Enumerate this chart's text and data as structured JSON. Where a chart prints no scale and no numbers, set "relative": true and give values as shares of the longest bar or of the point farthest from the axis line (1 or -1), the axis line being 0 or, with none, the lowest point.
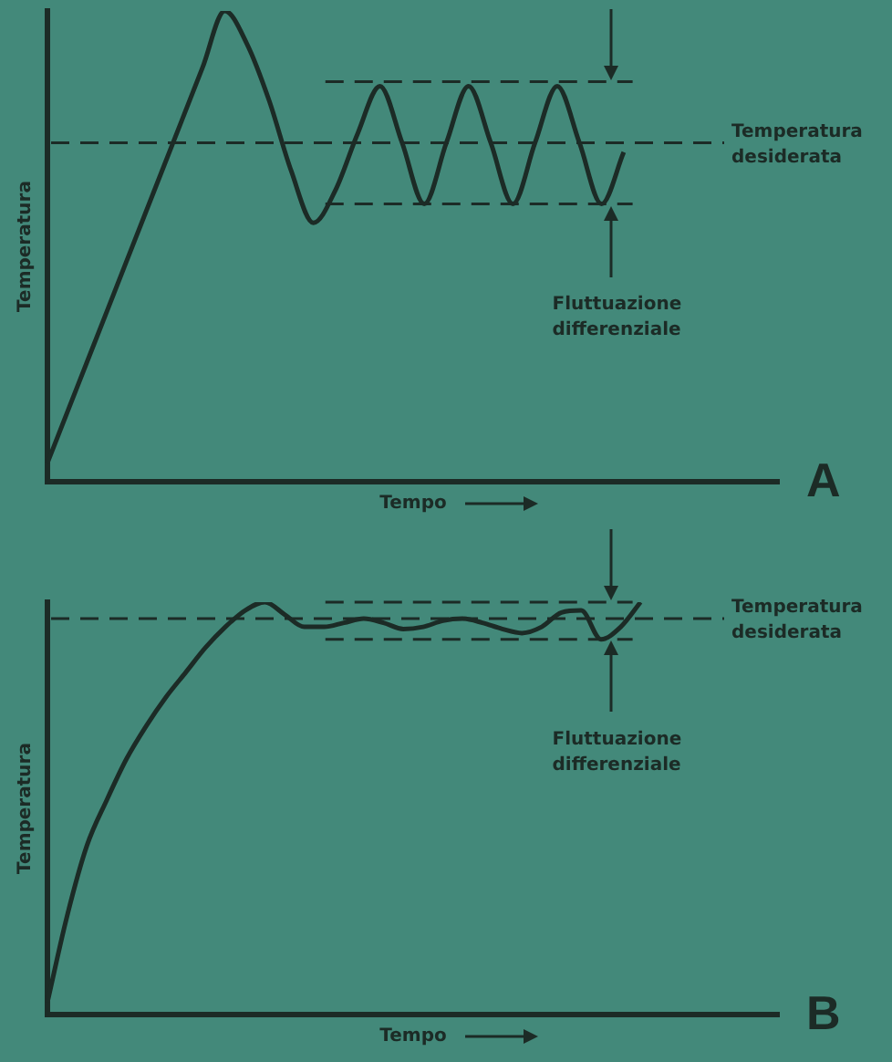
{
  "chart_data": [
    {
      "type": "line",
      "ylabel": "Temperatura",
      "xlabel": "Tempo",
      "relative": true,
      "marker": "none",
      "grid": false,
      "legend": false,
      "categories": [
        null,
        null,
        null,
        null,
        null,
        null,
        null,
        null,
        null,
        null,
        null,
        null,
        null,
        null,
        null,
        null,
        null,
        null,
        null,
        null,
        null,
        null,
        null,
        null,
        null,
        null,
        null,
        null,
        null,
        null,
        null,
        null,
        null,
        null
      ],
      "series": [
        {
          "color": "#1c2b26",
          "values": [
            0.04,
            0.16,
            0.28,
            0.4,
            0.52,
            0.64,
            0.76,
            0.88,
            1.0,
            0.93,
            0.81,
            0.66,
            0.55,
            0.62,
            0.74,
            0.84,
            0.72,
            0.59,
            0.72,
            0.84,
            0.72,
            0.59,
            0.72,
            0.84,
            0.72,
            0.59,
            0.7,
            null,
            null,
            null,
            null,
            null,
            null,
            null
          ]
        }
      ],
      "ref_lines": [
        {
          "axis": "y",
          "value": 0.72,
          "label": "Temperatura desiderata",
          "line_style": "dashed"
        },
        {
          "axis": "y",
          "value": 0.85,
          "line_style": "dashed"
        },
        {
          "axis": "y",
          "value": 0.59,
          "line_style": "dashed"
        }
      ],
      "annotations": [
        "Fluttuazione differenziale",
        "A"
      ]
    },
    {
      "type": "line",
      "ylabel": "Temperatura",
      "xlabel": "Tempo",
      "relative": true,
      "marker": "none",
      "grid": false,
      "legend": false,
      "categories": [
        null,
        null,
        null,
        null,
        null,
        null,
        null,
        null,
        null,
        null,
        null,
        null,
        null,
        null,
        null,
        null,
        null,
        null,
        null,
        null,
        null,
        null,
        null,
        null,
        null,
        null,
        null,
        null,
        null,
        null,
        null,
        null,
        null,
        null,
        null,
        null,
        null,
        null
      ],
      "series": [
        {
          "color": "#1c2b26",
          "values": [
            0.03,
            0.24,
            0.41,
            0.52,
            0.62,
            0.7,
            0.77,
            0.83,
            0.89,
            0.94,
            0.98,
            1.0,
            0.97,
            0.94,
            0.94,
            0.95,
            0.96,
            0.95,
            0.935,
            0.94,
            0.955,
            0.96,
            0.95,
            0.935,
            0.925,
            0.94,
            0.975,
            0.98,
            0.91,
            0.94,
            1.0,
            null,
            null,
            null,
            null,
            null,
            null,
            null
          ]
        }
      ],
      "ref_lines": [
        {
          "axis": "y",
          "value": 0.96,
          "label": "Temperatura desiderata",
          "line_style": "dashed"
        },
        {
          "axis": "y",
          "value": 1.0,
          "line_style": "dashed"
        },
        {
          "axis": "y",
          "value": 0.91,
          "line_style": "dashed"
        }
      ],
      "annotations": [
        "Fluttuazione differenziale",
        "B"
      ]
    }
  ]
}
